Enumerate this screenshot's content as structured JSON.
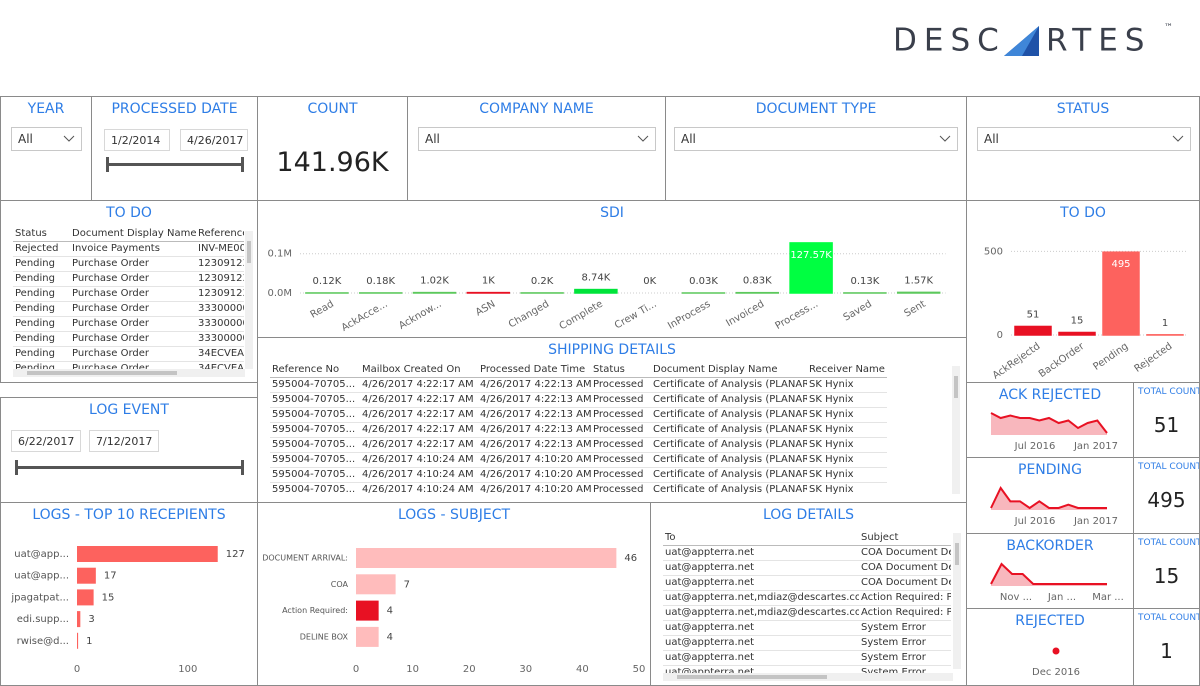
{
  "logo": {
    "left": "DESC",
    "right": "RTES",
    "mark": "™"
  },
  "filters": {
    "year": {
      "title": "YEAR",
      "value": "All"
    },
    "processed_date": {
      "title": "PROCESSED DATE",
      "start": "1/2/2014",
      "end": "4/26/2017"
    },
    "count": {
      "title": "COUNT",
      "value": "141.96K"
    },
    "company_name": {
      "title": "COMPANY NAME",
      "value": "All"
    },
    "document_type": {
      "title": "DOCUMENT TYPE",
      "value": "All"
    },
    "status": {
      "title": "STATUS",
      "value": "All"
    },
    "log_event": {
      "title": "LOG EVENT",
      "start": "6/22/2017",
      "end": "7/12/2017"
    }
  },
  "todo_table": {
    "title": "TO DO",
    "headers": [
      "Status",
      "Document Display Name",
      "Reference"
    ],
    "rows": [
      [
        "Rejected",
        "Invoice Payments",
        "INV-ME00"
      ],
      [
        "Pending",
        "Purchase Order",
        "12309123"
      ],
      [
        "Pending",
        "Purchase Order",
        "12309123"
      ],
      [
        "Pending",
        "Purchase Order",
        "12309123"
      ],
      [
        "Pending",
        "Purchase Order",
        "33300000"
      ],
      [
        "Pending",
        "Purchase Order",
        "33300000"
      ],
      [
        "Pending",
        "Purchase Order",
        "33300000"
      ],
      [
        "Pending",
        "Purchase Order",
        "34ECVEAE"
      ],
      [
        "Pending",
        "Purchase Order",
        "34ECVEAE"
      ]
    ]
  },
  "shipping_details": {
    "title": "SHIPPING DETAILS",
    "headers": [
      "Reference No",
      "Mailbox Created On",
      "Processed Date Time",
      "Status",
      "Document Display Name",
      "Receiver Name"
    ],
    "rows": [
      [
        "595004-70705...",
        "4/26/2017 4:22:17 AM",
        "4/26/2017 4:22:13 AM",
        "Processed",
        "Certificate of Analysis (PLANAR)",
        "SK Hynix"
      ],
      [
        "595004-70705...",
        "4/26/2017 4:22:17 AM",
        "4/26/2017 4:22:13 AM",
        "Processed",
        "Certificate of Analysis (PLANAR)",
        "SK Hynix"
      ],
      [
        "595004-70705...",
        "4/26/2017 4:22:17 AM",
        "4/26/2017 4:22:13 AM",
        "Processed",
        "Certificate of Analysis (PLANAR)",
        "SK Hynix"
      ],
      [
        "595004-70705...",
        "4/26/2017 4:22:17 AM",
        "4/26/2017 4:22:13 AM",
        "Processed",
        "Certificate of Analysis (PLANAR)",
        "SK Hynix"
      ],
      [
        "595004-70705...",
        "4/26/2017 4:22:17 AM",
        "4/26/2017 4:22:13 AM",
        "Processed",
        "Certificate of Analysis (PLANAR)",
        "SK Hynix"
      ],
      [
        "595004-70705...",
        "4/26/2017 4:10:24 AM",
        "4/26/2017 4:10:20 AM",
        "Processed",
        "Certificate of Analysis (PLANAR)",
        "SK Hynix"
      ],
      [
        "595004-70705...",
        "4/26/2017 4:10:24 AM",
        "4/26/2017 4:10:20 AM",
        "Processed",
        "Certificate of Analysis (PLANAR)",
        "SK Hynix"
      ],
      [
        "595004-70705...",
        "4/26/2017 4:10:24 AM",
        "4/26/2017 4:10:20 AM",
        "Processed",
        "Certificate of Analysis (PLANAR)",
        "SK Hynix"
      ],
      [
        "595004-70705...",
        "4/26/2017 4:10:24 AM",
        "4/26/2017 4:10:20 AM",
        "Processed",
        "Certificate of Analysis (PLANAR)",
        "SK Hynix"
      ]
    ]
  },
  "log_details": {
    "title": "LOG DETAILS",
    "headers": [
      "To",
      "Subject"
    ],
    "rows": [
      [
        "uat@appterra.net",
        "COA Document Delivery"
      ],
      [
        "uat@appterra.net",
        "COA Document Delivery"
      ],
      [
        "uat@appterra.net",
        "COA Document Delivery"
      ],
      [
        "uat@appterra.net,mdiaz@descartes.com",
        "Action Required: PO ..."
      ],
      [
        "uat@appterra.net,mdiaz@descartes.com",
        "Action Required: PO ..."
      ],
      [
        "uat@appterra.net",
        "System Error"
      ],
      [
        "uat@appterra.net",
        "System Error"
      ],
      [
        "uat@appterra.net",
        "System Error"
      ],
      [
        "uat@appterra.net",
        "System Error"
      ]
    ]
  },
  "kpis": [
    {
      "type": "area",
      "title": "ACK REJECTED",
      "color": "#e81123",
      "x_labels": [
        "Jul 2016",
        "Jan 2017"
      ],
      "values": [
        5,
        4,
        4.5,
        4,
        4,
        3.5,
        4,
        3,
        3.5,
        2,
        3,
        3.5,
        1
      ],
      "total_label": "TOTAL COUNT",
      "total": 51
    },
    {
      "type": "area",
      "title": "PENDING",
      "color": "#e81123",
      "x_labels": [
        "Jul 2016",
        "Jan 2017"
      ],
      "values": [
        2,
        5,
        3,
        3,
        2,
        3,
        2,
        2,
        2.5,
        2,
        2,
        2,
        2
      ],
      "total_label": "TOTAL COUNT",
      "total": 495
    },
    {
      "type": "area",
      "title": "BACKORDER",
      "color": "#e81123",
      "x_labels": [
        "Nov ...",
        "Jan ...",
        "Mar ..."
      ],
      "values": [
        2,
        4,
        3,
        3,
        2,
        2,
        2,
        2,
        2,
        2,
        2,
        2
      ],
      "total_label": "TOTAL COUNT",
      "total": 15
    },
    {
      "type": "area",
      "title": "REJECTED",
      "color": "#e81123",
      "x_labels": [
        "Dec 2016"
      ],
      "values": [
        1
      ],
      "total_label": "TOTAL COUNT",
      "total": 1
    }
  ],
  "chart_data": [
    {
      "type": "bar",
      "title": "SDI",
      "categories": [
        "Read",
        "AckAcce...",
        "Acknow...",
        "ASN",
        "Changed",
        "Complete",
        "Crew Ti...",
        "InProcess",
        "Invoiced",
        "Process...",
        "Saved",
        "Sent"
      ],
      "values": [
        120,
        180,
        1020,
        1000,
        200,
        8740,
        0,
        30,
        830,
        127570,
        130,
        1570
      ],
      "value_labels": [
        "0.12K",
        "0.18K",
        "1.02K",
        "1K",
        "0.2K",
        "8.74K",
        "0K",
        "0.03K",
        "0.83K",
        "127.57K",
        "0.13K",
        "1.57K"
      ],
      "colors": [
        "#5cc85c",
        "#5cc85c",
        "#5cc85c",
        "#e81123",
        "#5cc85c",
        "#00e43a",
        "#5cc85c",
        "#5cc85c",
        "#5cc85c",
        "#00ff41",
        "#5cc85c",
        "#5cc85c"
      ],
      "ylim": [
        0,
        135000
      ],
      "yticks": [
        {
          "value": 0,
          "label": "0.0M"
        },
        {
          "value": 100000,
          "label": "0.1M"
        }
      ],
      "grid": true
    },
    {
      "type": "bar",
      "title": "TO DO",
      "categories": [
        "AckRejectd",
        "BackOrder",
        "Pending",
        "Rejected"
      ],
      "values": [
        51,
        15,
        495,
        1
      ],
      "colors": [
        "#e81123",
        "#e81123",
        "#fd625e",
        "#fd625e"
      ],
      "ylim": [
        0,
        520
      ],
      "yticks": [
        0,
        500
      ],
      "grid": true
    },
    {
      "type": "bar",
      "horizontal": true,
      "title": "LOGS - TOP 10 RECEPIENTS",
      "categories": [
        "uat@app...",
        "uat@app...",
        "jpagatpat...",
        "edi.supp...",
        "rwise@d..."
      ],
      "values": [
        127,
        17,
        15,
        3,
        1
      ],
      "colors": [
        "#fd625e",
        "#fd625e",
        "#fd625e",
        "#fd625e",
        "#fd625e"
      ],
      "xlim": [
        0,
        148
      ],
      "xticks": [
        0,
        100
      ]
    },
    {
      "type": "bar",
      "horizontal": true,
      "title": "LOGS - SUBJECT",
      "categories": [
        "DOCUMENT ARRIVAL:",
        "COA",
        "Action Required:",
        "DELINE BOX"
      ],
      "values": [
        46,
        7,
        4,
        4
      ],
      "colors": [
        "#ffbcbc",
        "#ffbcbc",
        "#e81123",
        "#ffbcbc"
      ],
      "xlim": [
        0,
        50
      ],
      "xticks": [
        0,
        10,
        20,
        30,
        40,
        50
      ]
    }
  ]
}
